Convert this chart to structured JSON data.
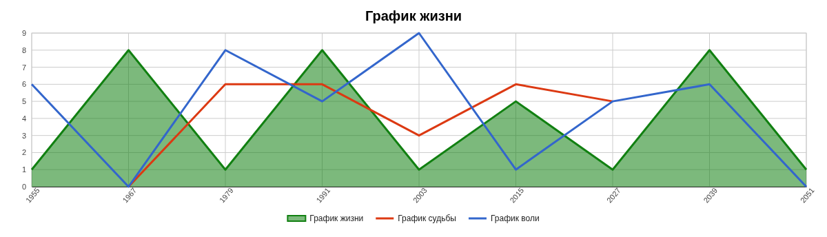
{
  "chart_data": {
    "type": "line",
    "title": "График жизни",
    "x": [
      1955,
      1967,
      1979,
      1991,
      2003,
      2015,
      2027,
      2039,
      2051
    ],
    "xlim": [
      1955,
      2051
    ],
    "xticks": [
      1955,
      1967,
      1979,
      1991,
      2003,
      2015,
      2027,
      2039,
      2051
    ],
    "ylim": [
      0,
      9
    ],
    "yticks": [
      0,
      1,
      2,
      3,
      4,
      5,
      6,
      7,
      8,
      9
    ],
    "grid": true,
    "legend": "bottom",
    "marker": "none",
    "line_style": "solid",
    "series": [
      {
        "name": "График жизни",
        "type": "area",
        "color": "#118011",
        "values": [
          1,
          8,
          1,
          8,
          1,
          5,
          1,
          8,
          1
        ]
      },
      {
        "name": "График судьбы",
        "type": "line",
        "color": "#dc3912",
        "values": [
          null,
          0,
          6,
          6,
          3,
          6,
          5,
          null,
          null
        ]
      },
      {
        "name": "График воли",
        "type": "line",
        "color": "#3366cc",
        "values": [
          6,
          0,
          8,
          5,
          9,
          1,
          5,
          6,
          0
        ]
      }
    ]
  }
}
